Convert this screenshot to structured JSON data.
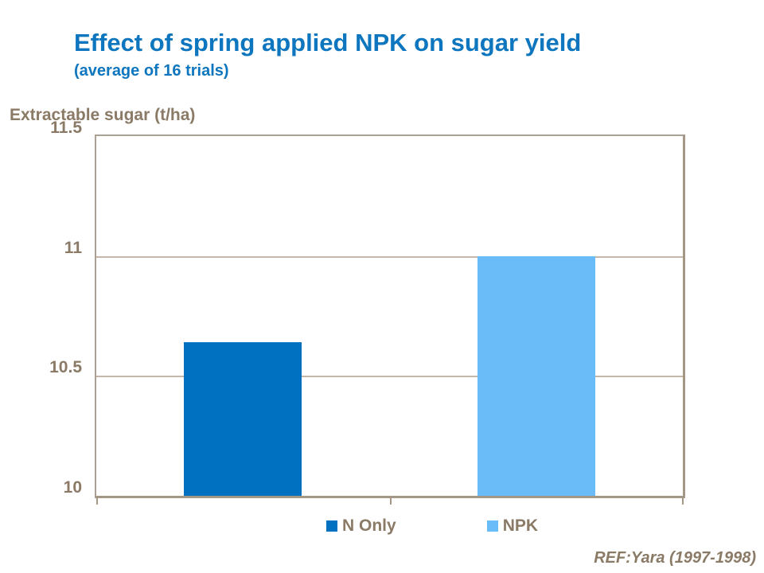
{
  "slide": {
    "title": "Effect of spring applied NPK on sugar yield",
    "subtitle": "(average of 16 trials)",
    "axis_title": "Extractable sugar (t/ha)",
    "reference": "REF:Yara (1997-1998)"
  },
  "colors": {
    "title_blue": "#0E76BE",
    "taupe_text": "#8A7A66",
    "plot_border": "#ABA094",
    "gridline": "#C4B6A8",
    "bar_n_only": "#0070C0",
    "bar_npk": "#69BCF8"
  },
  "chart_data": {
    "type": "bar",
    "title": "Effect of spring applied NPK on sugar yield",
    "subtitle": "(average of 16 trials)",
    "xlabel": "",
    "ylabel": "Extractable sugar (t/ha)",
    "categories": [
      "N Only",
      "NPK"
    ],
    "values": [
      10.64,
      11.0
    ],
    "ylim": [
      10,
      11.5
    ],
    "yticks": [
      11.5,
      11,
      10.5,
      10
    ],
    "grid": true,
    "legend": [
      "N Only",
      "NPK"
    ],
    "legend_position": "bottom",
    "bar_colors": [
      "#0070C0",
      "#69BCF8"
    ],
    "annotation": "REF:Yara (1997-1998)"
  }
}
